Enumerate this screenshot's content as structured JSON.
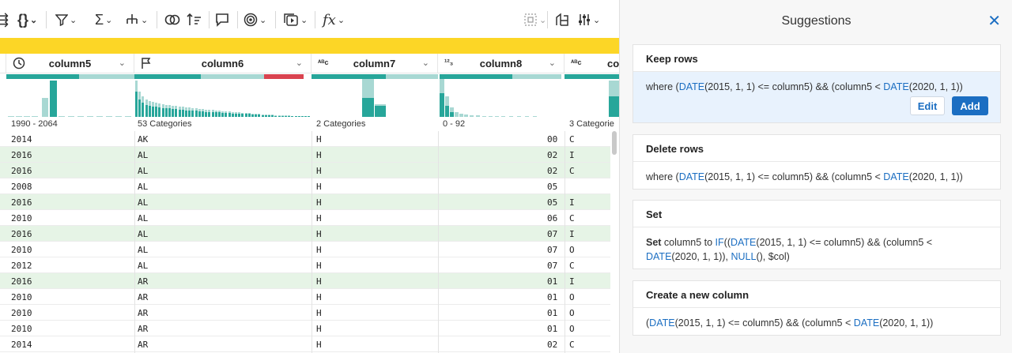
{
  "toolbar": {
    "icons": [
      "braces-icon",
      "filter-icon",
      "sigma-icon",
      "split-icon",
      "merge-icon",
      "sort-icon",
      "comment-icon",
      "target-icon",
      "macro-icon",
      "formula-icon",
      "grid-icon",
      "columns-icon",
      "settings-icon"
    ]
  },
  "columns": [
    {
      "name": "column5",
      "type": "clock-icon",
      "range": "1990 - 2064"
    },
    {
      "name": "column6",
      "type": "flag-icon",
      "range": "53 Categories"
    },
    {
      "name": "column7",
      "type": "abc-icon",
      "range": "2 Categories"
    },
    {
      "name": "column8",
      "type": "123-icon",
      "range": "0 - 92"
    },
    {
      "name": "co",
      "type": "abc-icon",
      "range": "3 Categorie"
    }
  ],
  "type_glyphs": {
    "abc": "ᴬᴮc",
    "num": "¹²₃"
  },
  "rows": [
    {
      "c5": "2014",
      "c6": "AK",
      "c7": "H",
      "c8": "00",
      "c9": "C",
      "hl": false
    },
    {
      "c5": "2016",
      "c6": "AL",
      "c7": "H",
      "c8": "02",
      "c9": "I",
      "hl": true
    },
    {
      "c5": "2016",
      "c6": "AL",
      "c7": "H",
      "c8": "02",
      "c9": "C",
      "hl": true
    },
    {
      "c5": "2008",
      "c6": "AL",
      "c7": "H",
      "c8": "05",
      "c9": "",
      "hl": false
    },
    {
      "c5": "2016",
      "c6": "AL",
      "c7": "H",
      "c8": "05",
      "c9": "I",
      "hl": true
    },
    {
      "c5": "2010",
      "c6": "AL",
      "c7": "H",
      "c8": "06",
      "c9": "C",
      "hl": false
    },
    {
      "c5": "2016",
      "c6": "AL",
      "c7": "H",
      "c8": "07",
      "c9": "I",
      "hl": true
    },
    {
      "c5": "2010",
      "c6": "AL",
      "c7": "H",
      "c8": "07",
      "c9": "O",
      "hl": false
    },
    {
      "c5": "2012",
      "c6": "AL",
      "c7": "H",
      "c8": "07",
      "c9": "C",
      "hl": false
    },
    {
      "c5": "2016",
      "c6": "AR",
      "c7": "H",
      "c8": "01",
      "c9": "I",
      "hl": true
    },
    {
      "c5": "2010",
      "c6": "AR",
      "c7": "H",
      "c8": "01",
      "c9": "O",
      "hl": false
    },
    {
      "c5": "2010",
      "c6": "AR",
      "c7": "H",
      "c8": "01",
      "c9": "O",
      "hl": false
    },
    {
      "c5": "2010",
      "c6": "AR",
      "c7": "H",
      "c8": "01",
      "c9": "O",
      "hl": false
    },
    {
      "c5": "2014",
      "c6": "AR",
      "c7": "H",
      "c8": "02",
      "c9": "C",
      "hl": false
    }
  ],
  "panel": {
    "title": "Suggestions",
    "close": "✕",
    "cards": [
      {
        "title": "Keep rows",
        "selected": true,
        "body": [
          [
            "",
            "where ("
          ],
          [
            "fn",
            "DATE"
          ],
          [
            "",
            "(2015, 1, 1) <= column5) && (column5 < "
          ],
          [
            "fn",
            "DATE"
          ],
          [
            "",
            "(2020, 1, 1))"
          ]
        ],
        "edit": "Edit",
        "add": "Add"
      },
      {
        "title": "Delete rows",
        "selected": false,
        "body": [
          [
            "",
            "where ("
          ],
          [
            "fn",
            "DATE"
          ],
          [
            "",
            "(2015, 1, 1) <= column5) && (column5 < "
          ],
          [
            "fn",
            "DATE"
          ],
          [
            "",
            "(2020, 1, 1))"
          ]
        ]
      },
      {
        "title": "Set",
        "selected": false,
        "body": [
          [
            "b",
            "Set"
          ],
          [
            "",
            " column5 to "
          ],
          [
            "fn",
            "IF"
          ],
          [
            "",
            "(("
          ],
          [
            "fn",
            "DATE"
          ],
          [
            "",
            "(2015, 1, 1) <= column5) && (column5 < "
          ],
          [
            "fn",
            "DATE"
          ],
          [
            "",
            "(2020, 1, 1)), "
          ],
          [
            "fn",
            "NULL"
          ],
          [
            "",
            "(), $col)"
          ]
        ]
      },
      {
        "title": "Create a new column",
        "selected": false,
        "body": [
          [
            "",
            "("
          ],
          [
            "fn",
            "DATE"
          ],
          [
            "",
            "(2015, 1, 1) <= column5) && (column5 < "
          ],
          [
            "fn",
            "DATE"
          ],
          [
            "",
            "(2020, 1, 1))"
          ]
        ]
      }
    ]
  },
  "colors": {
    "accent": "#1b6ec2",
    "teal": "#27a69a",
    "yellow": "#fcd626",
    "highlight": "#e6f4e6",
    "mismatch": "#d9434f"
  }
}
